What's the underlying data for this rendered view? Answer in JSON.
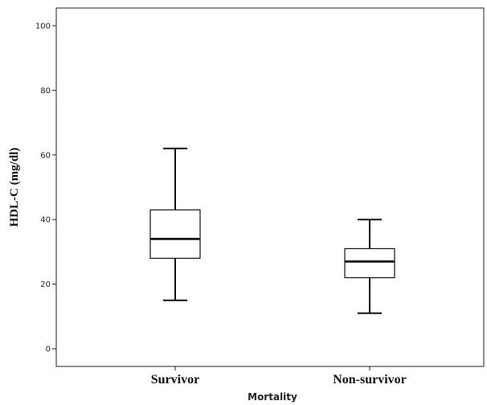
{
  "chart_data": {
    "type": "boxplot",
    "xlabel": "Mortality",
    "ylabel": "HDL-C (mg/dl)",
    "ylim": [
      -5,
      106
    ],
    "yticks": [
      0,
      20,
      40,
      60,
      80,
      100
    ],
    "grid": false,
    "categories": [
      "Survivor",
      "Non-survivor"
    ],
    "boxes": [
      {
        "category": "Survivor",
        "min": 15,
        "q1": 28,
        "median": 34,
        "q3": 43,
        "max": 62
      },
      {
        "category": "Non-survivor",
        "min": 11,
        "q1": 22,
        "median": 27,
        "q3": 31,
        "max": 40
      }
    ]
  }
}
